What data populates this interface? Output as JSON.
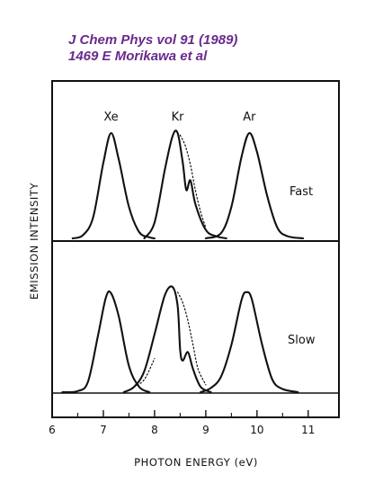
{
  "citation": {
    "line1": "J Chem Phys vol 91 (1989)",
    "line2": "1469 E Morikawa et al"
  },
  "chart_data": {
    "type": "line",
    "xlabel": "PHOTON ENERGY (eV)",
    "ylabel": "EMISSION INTENSITY",
    "xlim": [
      6,
      11.6
    ],
    "xticks": [
      6,
      7,
      8,
      9,
      10,
      11
    ],
    "grid": false,
    "panels": [
      {
        "label": "Fast",
        "peak_labels": [
          {
            "text": "Xe",
            "x": 7.15
          },
          {
            "text": "Kr",
            "x": 8.45
          },
          {
            "text": "Ar",
            "x": 9.85
          }
        ],
        "series": [
          {
            "values": [
              [
                6.4,
                0
              ],
              [
                6.6,
                0.03
              ],
              [
                6.8,
                0.2
              ],
              [
                7.0,
                0.72
              ],
              [
                7.15,
                1.0
              ],
              [
                7.3,
                0.75
              ],
              [
                7.5,
                0.3
              ],
              [
                7.7,
                0.06
              ],
              [
                7.9,
                0.01
              ],
              [
                8.0,
                0.0
              ]
            ]
          },
          {
            "values": [
              [
                7.8,
                0
              ],
              [
                8.0,
                0.15
              ],
              [
                8.2,
                0.65
              ],
              [
                8.35,
                0.97
              ],
              [
                8.45,
                1.0
              ],
              [
                8.55,
                0.72
              ],
              [
                8.62,
                0.46
              ],
              [
                8.7,
                0.55
              ],
              [
                8.8,
                0.32
              ],
              [
                9.0,
                0.08
              ],
              [
                9.2,
                0.02
              ],
              [
                9.4,
                0
              ]
            ]
          },
          {
            "style": "dotted",
            "values": [
              [
                8.5,
                0.98
              ],
              [
                8.6,
                0.88
              ],
              [
                8.7,
                0.7
              ],
              [
                8.8,
                0.45
              ],
              [
                8.9,
                0.25
              ],
              [
                9.0,
                0.1
              ]
            ]
          },
          {
            "values": [
              [
                9.0,
                0
              ],
              [
                9.3,
                0.05
              ],
              [
                9.5,
                0.3
              ],
              [
                9.7,
                0.78
              ],
              [
                9.85,
                1.0
              ],
              [
                10.0,
                0.82
              ],
              [
                10.2,
                0.4
              ],
              [
                10.4,
                0.1
              ],
              [
                10.6,
                0.02
              ],
              [
                10.9,
                0.0
              ]
            ]
          }
        ]
      },
      {
        "label": "Slow",
        "series": [
          {
            "values": [
              [
                6.2,
                0
              ],
              [
                6.5,
                0.01
              ],
              [
                6.7,
                0.1
              ],
              [
                6.9,
                0.55
              ],
              [
                7.05,
                0.9
              ],
              [
                7.15,
                0.94
              ],
              [
                7.3,
                0.72
              ],
              [
                7.5,
                0.25
              ],
              [
                7.7,
                0.05
              ],
              [
                7.9,
                0
              ]
            ]
          },
          {
            "values": [
              [
                7.4,
                0
              ],
              [
                7.6,
                0.05
              ],
              [
                7.8,
                0.2
              ],
              [
                8.0,
                0.55
              ],
              [
                8.2,
                0.92
              ],
              [
                8.35,
                1.0
              ],
              [
                8.45,
                0.82
              ],
              [
                8.5,
                0.4
              ],
              [
                8.55,
                0.3
              ],
              [
                8.65,
                0.38
              ],
              [
                8.75,
                0.22
              ],
              [
                8.9,
                0.05
              ],
              [
                9.1,
                0
              ]
            ]
          },
          {
            "style": "dotted",
            "values": [
              [
                8.45,
                0.95
              ],
              [
                8.55,
                0.85
              ],
              [
                8.65,
                0.68
              ],
              [
                8.75,
                0.45
              ],
              [
                8.85,
                0.22
              ],
              [
                9.0,
                0.07
              ]
            ]
          },
          {
            "style": "dotted",
            "values": [
              [
                7.6,
                0.05
              ],
              [
                7.8,
                0.12
              ],
              [
                8.0,
                0.32
              ]
            ]
          },
          {
            "values": [
              [
                8.9,
                0
              ],
              [
                9.1,
                0.04
              ],
              [
                9.3,
                0.15
              ],
              [
                9.5,
                0.45
              ],
              [
                9.7,
                0.88
              ],
              [
                9.8,
                0.95
              ],
              [
                9.9,
                0.88
              ],
              [
                10.1,
                0.45
              ],
              [
                10.3,
                0.12
              ],
              [
                10.5,
                0.03
              ],
              [
                10.8,
                0.0
              ]
            ]
          }
        ]
      }
    ]
  }
}
